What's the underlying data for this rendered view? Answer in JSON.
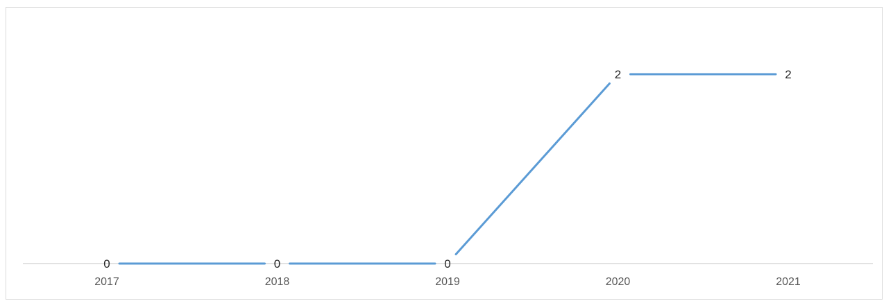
{
  "chart_data": {
    "type": "line",
    "categories": [
      "2017",
      "2018",
      "2019",
      "2020",
      "2021"
    ],
    "values": [
      0,
      0,
      0,
      2,
      2
    ],
    "data_labels": [
      "0",
      "0",
      "0",
      "2",
      "2"
    ],
    "title": "",
    "xlabel": "",
    "ylabel": "",
    "ylim": [
      0,
      2
    ],
    "grid": false,
    "legend": "none",
    "colors": {
      "line": "#5b9bd5",
      "axis": "#d9d9d9",
      "label": "#262626",
      "tick": "#595959"
    }
  }
}
